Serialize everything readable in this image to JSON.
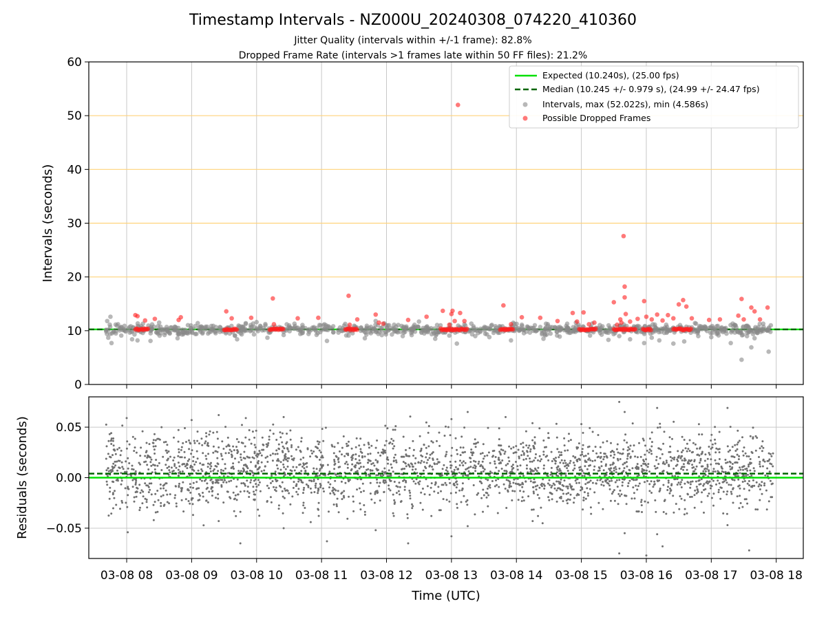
{
  "chart_data": [
    {
      "type": "scatter",
      "title": "Timestamp Intervals - NZ000U_20240308_074220_410360",
      "subtitle_lines": [
        "Jitter Quality (intervals within +/-1 frame): 82.8%",
        "Dropped Frame Rate (intervals >1 frames late within 50 FF files): 21.2%"
      ],
      "xlabel": "",
      "ylabel": "Intervals (seconds)",
      "xlim": [
        "2024-03-08 07:25",
        "2024-03-08 18:25"
      ],
      "ylim": [
        0,
        60
      ],
      "y_ticks": [
        0,
        10,
        20,
        30,
        40,
        50,
        60
      ],
      "x_ticks": [
        {
          "at": "2024-03-08 08:00",
          "label": "03-08 08"
        },
        {
          "at": "2024-03-08 09:00",
          "label": "03-08 09"
        },
        {
          "at": "2024-03-08 10:00",
          "label": "03-08 10"
        },
        {
          "at": "2024-03-08 11:00",
          "label": "03-08 11"
        },
        {
          "at": "2024-03-08 12:00",
          "label": "03-08 12"
        },
        {
          "at": "2024-03-08 13:00",
          "label": "03-08 13"
        },
        {
          "at": "2024-03-08 14:00",
          "label": "03-08 14"
        },
        {
          "at": "2024-03-08 15:00",
          "label": "03-08 15"
        },
        {
          "at": "2024-03-08 16:00",
          "label": "03-08 16"
        },
        {
          "at": "2024-03-08 17:00",
          "label": "03-08 17"
        },
        {
          "at": "2024-03-08 18:00",
          "label": "03-08 18"
        }
      ],
      "x_grid": true,
      "horizontal_reference_lines": {
        "values": [
          20,
          30,
          40,
          50
        ],
        "color": "#ffd27a"
      },
      "legend": {
        "placement": "top-right"
      },
      "expected_line": {
        "label": "Expected (10.240s), (25.00 fps)",
        "y": 10.24,
        "color": "#00e000",
        "style": "solid"
      },
      "median_line": {
        "label": "Median (10.245 +/- 0.979 s), (24.99 +/- 24.47 fps)",
        "y": 10.245,
        "color": "#006400",
        "style": "dashed"
      },
      "series": [
        {
          "name": "Intervals, max (52.022s), min (4.586s)",
          "color": "#888888",
          "points": [
            [
              "2024-03-08 07:42",
              11.8
            ],
            [
              "2024-03-08 07:43",
              8.7
            ],
            [
              "2024-03-08 07:45",
              12.6
            ],
            [
              "2024-03-08 07:46",
              7.7
            ],
            [
              "2024-03-08 07:50",
              9.5
            ],
            [
              "2024-03-08 07:52",
              11.2
            ],
            [
              "2024-03-08 07:55",
              9.1
            ],
            [
              "2024-03-08 07:58",
              10.9
            ],
            [
              "2024-03-08 08:05",
              8.4
            ],
            [
              "2024-03-08 08:10",
              8.2
            ],
            [
              "2024-03-08 08:15",
              11.3
            ],
            [
              "2024-03-08 08:22",
              8.1
            ],
            [
              "2024-03-08 08:30",
              11.5
            ],
            [
              "2024-03-08 08:35",
              9.2
            ],
            [
              "2024-03-08 08:47",
              8.6
            ],
            [
              "2024-03-08 08:55",
              9.6
            ],
            [
              "2024-03-08 09:10",
              9.5
            ],
            [
              "2024-03-08 09:20",
              10.9
            ],
            [
              "2024-03-08 09:40",
              9.1
            ],
            [
              "2024-03-08 09:42",
              8.4
            ],
            [
              "2024-03-08 09:50",
              11.4
            ],
            [
              "2024-03-08 10:00",
              11.6
            ],
            [
              "2024-03-08 10:10",
              8.7
            ],
            [
              "2024-03-08 10:25",
              9.2
            ],
            [
              "2024-03-08 10:35",
              11.3
            ],
            [
              "2024-03-08 10:48",
              9.4
            ],
            [
              "2024-03-08 11:05",
              8.1
            ],
            [
              "2024-03-08 11:25",
              9.1
            ],
            [
              "2024-03-08 11:40",
              8.6
            ],
            [
              "2024-03-08 11:50",
              11.8
            ],
            [
              "2024-03-08 12:05",
              9.3
            ],
            [
              "2024-03-08 12:15",
              9.0
            ],
            [
              "2024-03-08 12:30",
              11.7
            ],
            [
              "2024-03-08 12:45",
              8.5
            ],
            [
              "2024-03-08 12:58",
              9.1
            ],
            [
              "2024-03-08 13:05",
              7.6
            ],
            [
              "2024-03-08 13:12",
              11.2
            ],
            [
              "2024-03-08 13:22",
              9.0
            ],
            [
              "2024-03-08 13:35",
              8.8
            ],
            [
              "2024-03-08 13:55",
              8.2
            ],
            [
              "2024-03-08 14:05",
              11.1
            ],
            [
              "2024-03-08 14:25",
              8.5
            ],
            [
              "2024-03-08 14:40",
              8.9
            ],
            [
              "2024-03-08 14:55",
              11.5
            ],
            [
              "2024-03-08 15:08",
              9.1
            ],
            [
              "2024-03-08 15:25",
              8.3
            ],
            [
              "2024-03-08 15:35",
              9.0
            ],
            [
              "2024-03-08 15:45",
              8.4
            ],
            [
              "2024-03-08 15:58",
              7.7
            ],
            [
              "2024-03-08 16:05",
              8.7
            ],
            [
              "2024-03-08 16:12",
              8.2
            ],
            [
              "2024-03-08 16:25",
              7.6
            ],
            [
              "2024-03-08 16:35",
              8.0
            ],
            [
              "2024-03-08 16:48",
              9.0
            ],
            [
              "2024-03-08 17:00",
              8.8
            ],
            [
              "2024-03-08 17:18",
              7.7
            ],
            [
              "2024-03-08 17:28",
              4.6
            ],
            [
              "2024-03-08 17:33",
              9.0
            ],
            [
              "2024-03-08 17:37",
              6.9
            ],
            [
              "2024-03-08 17:40",
              8.6
            ],
            [
              "2024-03-08 17:48",
              11.3
            ],
            [
              "2024-03-08 17:53",
              6.1
            ],
            [
              "2024-03-08 17:55",
              11.0
            ]
          ]
        },
        {
          "name": "Possible Dropped Frames",
          "color": "#ff2020",
          "points": [
            [
              "2024-03-08 08:08",
              12.9
            ],
            [
              "2024-03-08 08:10",
              12.7
            ],
            [
              "2024-03-08 08:17",
              11.9
            ],
            [
              "2024-03-08 08:26",
              12.2
            ],
            [
              "2024-03-08 08:48",
              12.0
            ],
            [
              "2024-03-08 08:50",
              12.5
            ],
            [
              "2024-03-08 09:32",
              13.6
            ],
            [
              "2024-03-08 09:37",
              12.3
            ],
            [
              "2024-03-08 09:55",
              12.4
            ],
            [
              "2024-03-08 10:15",
              16.0
            ],
            [
              "2024-03-08 10:16",
              11.2
            ],
            [
              "2024-03-08 10:38",
              12.3
            ],
            [
              "2024-03-08 10:57",
              12.4
            ],
            [
              "2024-03-08 11:25",
              16.5
            ],
            [
              "2024-03-08 11:26",
              11.1
            ],
            [
              "2024-03-08 11:33",
              12.1
            ],
            [
              "2024-03-08 11:50",
              13.0
            ],
            [
              "2024-03-08 11:53",
              11.5
            ],
            [
              "2024-03-08 11:57",
              11.3
            ],
            [
              "2024-03-08 12:20",
              12.0
            ],
            [
              "2024-03-08 12:37",
              12.6
            ],
            [
              "2024-03-08 12:52",
              13.7
            ],
            [
              "2024-03-08 12:58",
              11.1
            ],
            [
              "2024-03-08 13:00",
              13.1
            ],
            [
              "2024-03-08 13:01",
              13.7
            ],
            [
              "2024-03-08 13:03",
              11.8
            ],
            [
              "2024-03-08 13:06",
              52.0
            ],
            [
              "2024-03-08 13:08",
              13.3
            ],
            [
              "2024-03-08 13:12",
              11.8
            ],
            [
              "2024-03-08 13:48",
              14.7
            ],
            [
              "2024-03-08 13:55",
              11.2
            ],
            [
              "2024-03-08 14:05",
              12.5
            ],
            [
              "2024-03-08 14:22",
              12.4
            ],
            [
              "2024-03-08 14:38",
              11.8
            ],
            [
              "2024-03-08 14:52",
              13.3
            ],
            [
              "2024-03-08 14:56",
              11.7
            ],
            [
              "2024-03-08 15:02",
              13.4
            ],
            [
              "2024-03-08 15:07",
              11.2
            ],
            [
              "2024-03-08 15:12",
              11.5
            ],
            [
              "2024-03-08 15:30",
              15.3
            ],
            [
              "2024-03-08 15:33",
              11.1
            ],
            [
              "2024-03-08 15:36",
              12.1
            ],
            [
              "2024-03-08 15:37",
              11.5
            ],
            [
              "2024-03-08 15:39",
              27.6
            ],
            [
              "2024-03-08 15:40",
              18.2
            ],
            [
              "2024-03-08 15:40",
              16.2
            ],
            [
              "2024-03-08 15:41",
              13.1
            ],
            [
              "2024-03-08 15:45",
              11.7
            ],
            [
              "2024-03-08 15:52",
              12.2
            ],
            [
              "2024-03-08 15:58",
              15.5
            ],
            [
              "2024-03-08 16:00",
              12.6
            ],
            [
              "2024-03-08 16:05",
              12.1
            ],
            [
              "2024-03-08 16:10",
              13.0
            ],
            [
              "2024-03-08 16:15",
              11.9
            ],
            [
              "2024-03-08 16:20",
              12.9
            ],
            [
              "2024-03-08 16:25",
              12.3
            ],
            [
              "2024-03-08 16:30",
              14.9
            ],
            [
              "2024-03-08 16:34",
              15.7
            ],
            [
              "2024-03-08 16:37",
              14.5
            ],
            [
              "2024-03-08 16:42",
              12.3
            ],
            [
              "2024-03-08 16:58",
              12.0
            ],
            [
              "2024-03-08 17:08",
              12.1
            ],
            [
              "2024-03-08 17:25",
              12.8
            ],
            [
              "2024-03-08 17:28",
              15.9
            ],
            [
              "2024-03-08 17:30",
              12.1
            ],
            [
              "2024-03-08 17:37",
              14.3
            ],
            [
              "2024-03-08 17:40",
              13.6
            ],
            [
              "2024-03-08 17:45",
              12.1
            ],
            [
              "2024-03-08 17:52",
              14.3
            ]
          ]
        }
      ]
    },
    {
      "type": "scatter",
      "xlabel": "Time (UTC)",
      "ylabel": "Residuals (seconds)",
      "xlim": [
        "2024-03-08 07:25",
        "2024-03-08 18:25"
      ],
      "ylim": [
        -0.08,
        0.08
      ],
      "y_ticks": [
        {
          "at": 0.05,
          "label": "0.05"
        },
        {
          "at": 0.0,
          "label": "0.00"
        },
        {
          "at": -0.05,
          "label": "−0.05"
        }
      ],
      "x_ticks": [
        {
          "at": "2024-03-08 08:00",
          "label": "03-08 08"
        },
        {
          "at": "2024-03-08 09:00",
          "label": "03-08 09"
        },
        {
          "at": "2024-03-08 10:00",
          "label": "03-08 10"
        },
        {
          "at": "2024-03-08 11:00",
          "label": "03-08 11"
        },
        {
          "at": "2024-03-08 12:00",
          "label": "03-08 12"
        },
        {
          "at": "2024-03-08 13:00",
          "label": "03-08 13"
        },
        {
          "at": "2024-03-08 14:00",
          "label": "03-08 14"
        },
        {
          "at": "2024-03-08 15:00",
          "label": "03-08 15"
        },
        {
          "at": "2024-03-08 16:00",
          "label": "03-08 16"
        },
        {
          "at": "2024-03-08 17:00",
          "label": "03-08 17"
        },
        {
          "at": "2024-03-08 18:00",
          "label": "03-08 18"
        }
      ],
      "grid": true,
      "zero_line": {
        "y": 0.0,
        "color": "#00e000",
        "style": "solid"
      },
      "median_line": {
        "y": 0.004,
        "color": "#006400",
        "style": "dashed"
      },
      "series": [
        {
          "color": "#707070",
          "points": [
            [
              "2024-03-08 08:00",
              0.059
            ],
            [
              "2024-03-08 08:01",
              -0.054
            ],
            [
              "2024-03-08 08:25",
              -0.042
            ],
            [
              "2024-03-08 09:00",
              0.057
            ],
            [
              "2024-03-08 09:25",
              -0.043
            ],
            [
              "2024-03-08 09:25",
              0.062
            ],
            [
              "2024-03-08 09:45",
              -0.065
            ],
            [
              "2024-03-08 10:25",
              0.06
            ],
            [
              "2024-03-08 10:25",
              -0.05
            ],
            [
              "2024-03-08 10:50",
              -0.044
            ],
            [
              "2024-03-08 11:05",
              -0.063
            ],
            [
              "2024-03-08 11:50",
              -0.052
            ],
            [
              "2024-03-08 12:20",
              -0.065
            ],
            [
              "2024-03-08 13:00",
              0.058
            ],
            [
              "2024-03-08 13:00",
              -0.058
            ],
            [
              "2024-03-08 13:15",
              0.065
            ],
            [
              "2024-03-08 13:15",
              -0.048
            ],
            [
              "2024-03-08 13:50",
              0.06
            ],
            [
              "2024-03-08 14:15",
              -0.043
            ],
            [
              "2024-03-08 15:00",
              0.053
            ],
            [
              "2024-03-08 15:35",
              -0.075
            ],
            [
              "2024-03-08 15:35",
              0.075
            ],
            [
              "2024-03-08 15:40",
              -0.055
            ],
            [
              "2024-03-08 15:40",
              0.065
            ],
            [
              "2024-03-08 16:00",
              -0.077
            ],
            [
              "2024-03-08 16:10",
              -0.056
            ],
            [
              "2024-03-08 16:10",
              0.069
            ],
            [
              "2024-03-08 16:15",
              -0.068
            ],
            [
              "2024-03-08 17:15",
              0.069
            ],
            [
              "2024-03-08 17:15",
              -0.047
            ],
            [
              "2024-03-08 17:35",
              -0.072
            ]
          ]
        }
      ]
    }
  ]
}
